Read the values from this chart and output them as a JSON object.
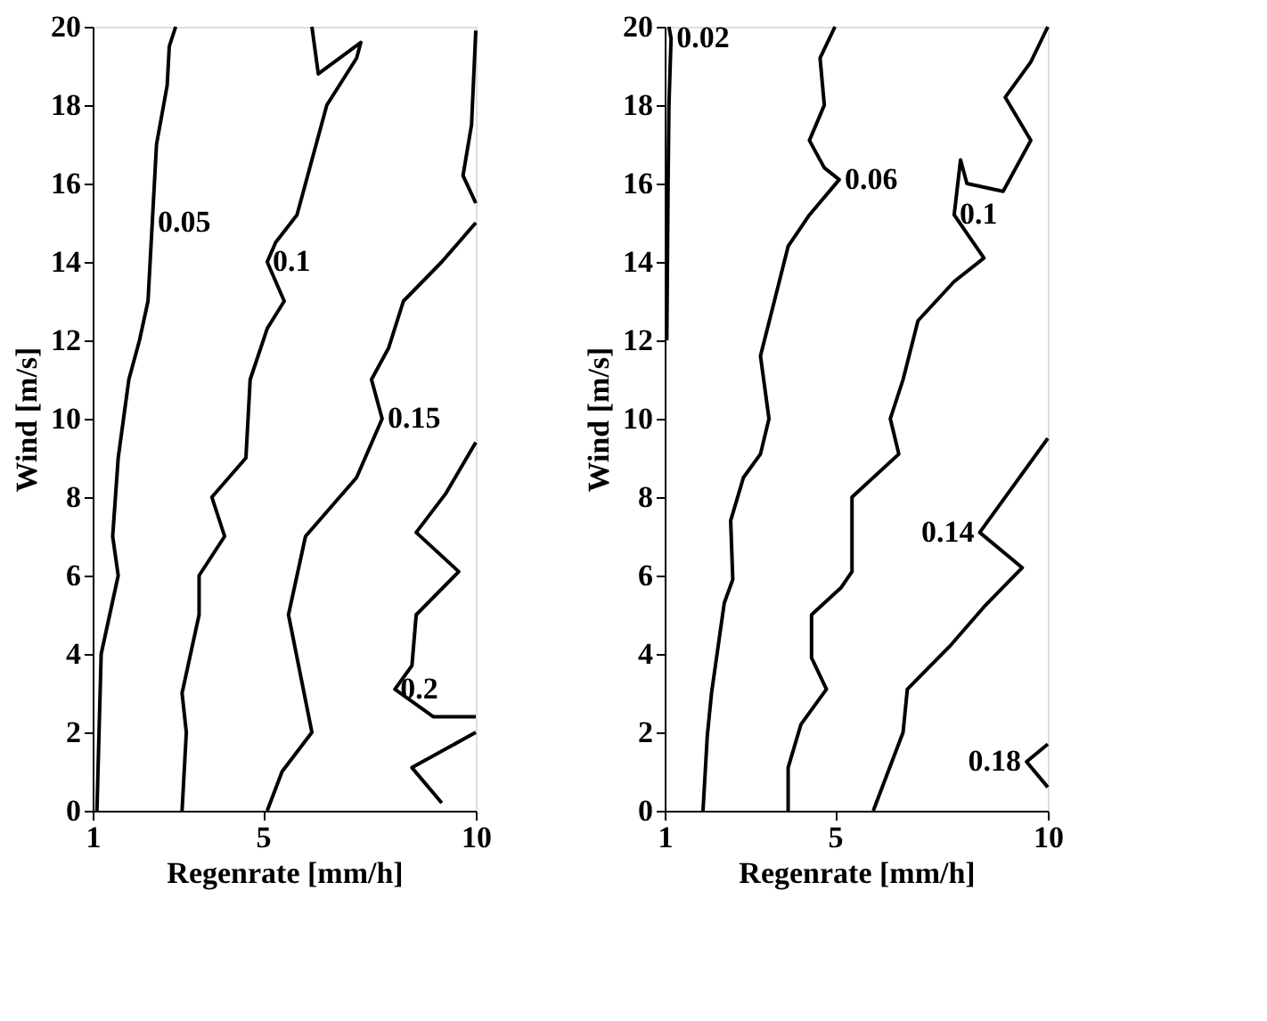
{
  "chart_data": [
    {
      "type": "line",
      "xlabel": "Regenrate [mm/h]",
      "ylabel": "Wind [m/s]",
      "xlim": [
        1,
        10
      ],
      "xticks": [
        1,
        5,
        10
      ],
      "ylim": [
        0,
        20
      ],
      "yticks": [
        0,
        2,
        4,
        6,
        8,
        10,
        12,
        14,
        16,
        18,
        20
      ],
      "grid": false,
      "series": [
        {
          "color": "#000000",
          "x": [
            1.1,
            1.15,
            1.2,
            1.4,
            1.6,
            1.47,
            1.6,
            1.85,
            2.1,
            2.3,
            2.4,
            2.5,
            2.75,
            2.8,
            2.95
          ],
          "values": [
            0,
            2,
            4,
            5,
            6,
            7,
            9,
            11,
            12,
            13,
            15,
            17,
            18.5,
            19.5,
            20
          ]
        },
        {
          "color": "#000000",
          "x": [
            3.1,
            3.2,
            3.1,
            3.5,
            3.5,
            4.1,
            3.8,
            4.2,
            4.6,
            4.7,
            5.1,
            5.5,
            5.1,
            5.3,
            5.8,
            6.0,
            6.5,
            7.2,
            7.3,
            6.3,
            6.15
          ],
          "values": [
            0,
            2,
            3,
            5,
            6,
            7,
            8,
            8.5,
            9,
            11,
            12.3,
            13,
            14,
            14.5,
            15.2,
            16,
            18,
            19.2,
            19.6,
            18.8,
            20
          ]
        },
        {
          "color": "#000000",
          "x": [
            5.1,
            5.45,
            6.15,
            5.6,
            6.0,
            7.2,
            7.8,
            7.55,
            7.95,
            8.3,
            9.2,
            10,
            null,
            10,
            9.9,
            9.7,
            10
          ],
          "values": [
            0,
            1,
            2,
            5,
            7,
            8.5,
            10,
            11,
            11.8,
            13,
            14,
            15,
            null,
            19.9,
            17.5,
            16.2,
            15.5
          ]
        },
        {
          "color": "#000000",
          "x": [
            10,
            9.3,
            8.6,
            9.6,
            8.6,
            8.5,
            8.1,
            9.0,
            10,
            null,
            10,
            8.5,
            9.2
          ],
          "values": [
            9.4,
            8.1,
            7.1,
            6.1,
            5,
            3.7,
            3.1,
            2.4,
            2.4,
            null,
            2,
            1.1,
            0.2
          ]
        }
      ],
      "annotations": [
        {
          "text": "0.05",
          "x": 2.4,
          "y": 15
        },
        {
          "text": "0.1",
          "x": 5.1,
          "y": 14
        },
        {
          "text": "0.15",
          "x": 7.8,
          "y": 10
        },
        {
          "text": "0.2",
          "x": 8.1,
          "y": 3.1
        }
      ]
    },
    {
      "type": "line",
      "xlabel": "Regenrate [mm/h]",
      "ylabel": "Wind [m/s]",
      "xlim": [
        1,
        10
      ],
      "xticks": [
        1,
        5,
        10
      ],
      "ylim": [
        0,
        20
      ],
      "yticks": [
        0,
        2,
        4,
        6,
        8,
        10,
        12,
        14,
        16,
        18,
        20
      ],
      "grid": false,
      "series": [
        {
          "color": "#000000",
          "x": [
            1.05,
            1.08,
            1.1,
            1.15,
            1.1
          ],
          "values": [
            12,
            16,
            18,
            19.7,
            20
          ]
        },
        {
          "color": "#000000",
          "x": [
            1.9,
            2.0,
            2.1,
            2.4,
            2.6,
            2.55,
            2.85,
            3.25,
            3.45,
            3.25,
            3.6,
            3.9,
            4.4,
            5.1,
            4.75,
            4.4,
            4.75,
            4.65,
            5.0
          ],
          "values": [
            0,
            1.9,
            3,
            5.3,
            5.9,
            7.4,
            8.5,
            9.1,
            10,
            11.6,
            13.1,
            14.4,
            15.2,
            16.1,
            16.4,
            17.1,
            18,
            19.2,
            20
          ]
        },
        {
          "color": "#000000",
          "x": [
            3.9,
            3.9,
            4.2,
            4.8,
            4.45,
            4.45,
            5.15,
            5.4,
            5.4,
            6.5,
            6.3,
            6.6,
            6.95,
            7.8,
            8.5,
            7.8,
            7.95,
            8.1,
            8.95,
            9.6,
            9.0,
            9.6,
            10
          ],
          "values": [
            0,
            1.1,
            2.2,
            3.1,
            3.9,
            5,
            5.7,
            6.1,
            8,
            9.1,
            10,
            11,
            12.5,
            13.5,
            14.1,
            15.2,
            16.6,
            16,
            15.8,
            17.1,
            18.2,
            19.1,
            20
          ]
        },
        {
          "color": "#000000",
          "x": [
            5.9,
            6.6,
            6.7,
            7.7,
            8.5,
            9.4,
            8.4,
            10
          ],
          "values": [
            0,
            2,
            3.1,
            4.2,
            5.2,
            6.2,
            7.1,
            9.5
          ]
        },
        {
          "color": "#000000",
          "x": [
            10,
            9.5,
            10
          ],
          "values": [
            1.7,
            1.25,
            0.6
          ]
        }
      ],
      "annotations": [
        {
          "text": "0.02",
          "x": 1.15,
          "y": 19.7
        },
        {
          "text": "0.06",
          "x": 5.1,
          "y": 16.1
        },
        {
          "text": "0.1",
          "x": 7.8,
          "y": 15.2
        },
        {
          "text": "0.14",
          "x": 8.4,
          "y": 7.1
        },
        {
          "text": "0.18",
          "x": 9.5,
          "y": 1.25
        }
      ]
    }
  ]
}
